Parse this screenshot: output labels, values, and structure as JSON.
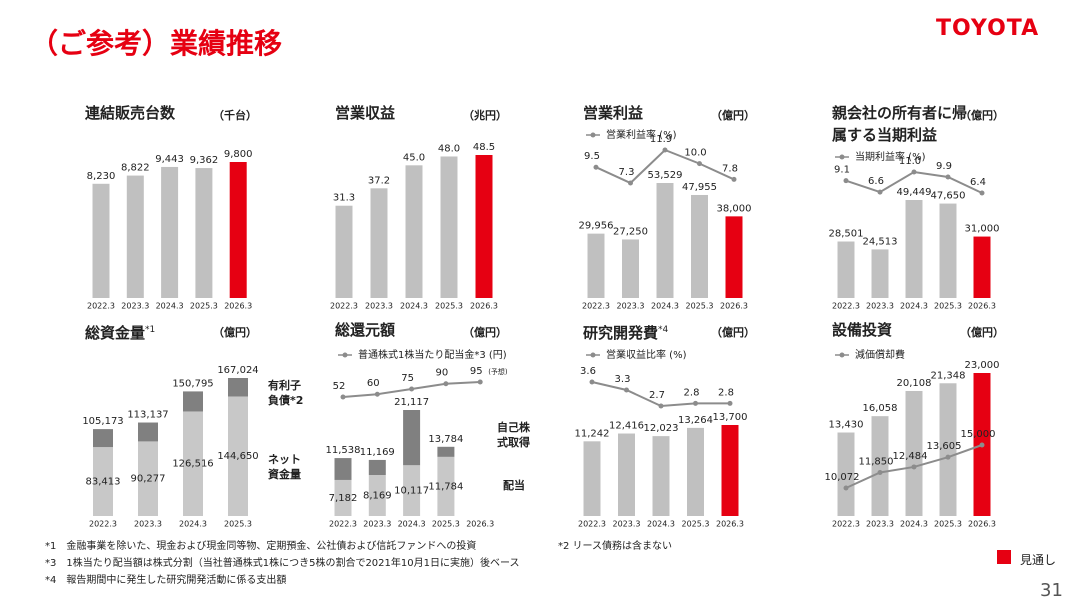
{
  "page": {
    "title": "（ご参考）業績推移",
    "logo": "TOYOTA",
    "page_number": "31",
    "forecast_legend": "見通し",
    "forecast_color": "#e60012",
    "footnotes": [
      "*1　金融事業を除いた、現金および現金同等物、定期預金、公社債および信託ファンドへの投資",
      "*2 リース債務は含まない",
      "*3　1株当たり配当額は株式分割（当社普通株式1株につき5株の割合で2021年10月1日に実施）後ベース",
      "*4　報告期間中に発生した研究開発活動に係る支出額"
    ]
  },
  "chart_data": [
    {
      "type": "bar",
      "title": "連結販売台数",
      "unit": "（千台）",
      "categories": [
        "2022.3",
        "2023.3",
        "2024.3",
        "2025.3",
        "2026.3"
      ],
      "values": [
        8230,
        8822,
        9443,
        9362,
        9800
      ],
      "value_labels": [
        "8,230",
        "8,822",
        "9,443",
        "9,362",
        "9,800"
      ],
      "colors": [
        "#c0c0c0",
        "#c0c0c0",
        "#c0c0c0",
        "#c0c0c0",
        "#e60012"
      ]
    },
    {
      "type": "bar",
      "title": "営業収益",
      "unit": "（兆円）",
      "categories": [
        "2022.3",
        "2023.3",
        "2024.3",
        "2025.3",
        "2026.3"
      ],
      "values": [
        31.3,
        37.2,
        45.0,
        48.0,
        48.5
      ],
      "value_labels": [
        "31.3",
        "37.2",
        "45.0",
        "48.0",
        "48.5"
      ],
      "colors": [
        "#c0c0c0",
        "#c0c0c0",
        "#c0c0c0",
        "#c0c0c0",
        "#e60012"
      ]
    },
    {
      "type": "bar",
      "title": "営業利益",
      "unit": "（億円）",
      "categories": [
        "2022.3",
        "2023.3",
        "2024.3",
        "2025.3",
        "2026.3"
      ],
      "values": [
        29956,
        27250,
        53529,
        47955,
        38000
      ],
      "value_labels": [
        "29,956",
        "27,250",
        "53,529",
        "47,955",
        "38,000"
      ],
      "colors": [
        "#c0c0c0",
        "#c0c0c0",
        "#c0c0c0",
        "#c0c0c0",
        "#e60012"
      ],
      "line": {
        "name": "営業利益率 (%)",
        "color": "#8c8c8c",
        "values": [
          9.5,
          7.3,
          11.9,
          10.0,
          7.8
        ],
        "value_labels": [
          "9.5",
          "7.3",
          "11.9",
          "10.0",
          "7.8"
        ]
      }
    },
    {
      "type": "bar",
      "title": "親会社の所有者に帰属する当期利益",
      "unit": "（億円）",
      "categories": [
        "2022.3",
        "2023.3",
        "2024.3",
        "2025.3",
        "2026.3"
      ],
      "values": [
        28501,
        24513,
        49449,
        47650,
        31000
      ],
      "value_labels": [
        "28,501",
        "24,513",
        "49,449",
        "47,650",
        "31,000"
      ],
      "colors": [
        "#c0c0c0",
        "#c0c0c0",
        "#c0c0c0",
        "#c0c0c0",
        "#e60012"
      ],
      "line": {
        "name": "当期利益率 (%)",
        "color": "#8c8c8c",
        "values": [
          9.1,
          6.6,
          11.0,
          9.9,
          6.4
        ],
        "value_labels": [
          "9.1",
          "6.6",
          "11.0",
          "9.9",
          "6.4"
        ]
      }
    },
    {
      "type": "stacked_bar",
      "title": "総資金量",
      "title_note": "*1",
      "unit": "（億円）",
      "categories": [
        "2022.3",
        "2023.3",
        "2024.3",
        "2025.3"
      ],
      "series": [
        {
          "name": "ネット資金量",
          "color": "#c8c8c8",
          "values": [
            83413,
            90277,
            126516,
            144650
          ],
          "value_labels": [
            "83,413",
            "90,277",
            "126,516",
            "144,650"
          ]
        },
        {
          "name": "有利子負債*2",
          "color": "#808080",
          "values": [
            21760,
            22860,
            24279,
            22374
          ]
        }
      ],
      "totals": [
        105173,
        113137,
        150795,
        167024
      ],
      "total_labels": [
        "105,173",
        "113,137",
        "150,795",
        "167,024"
      ]
    },
    {
      "type": "stacked_bar",
      "title": "総還元額",
      "unit": "（億円）",
      "categories": [
        "2022.3",
        "2023.3",
        "2024.3",
        "2025.3",
        "2026.3"
      ],
      "series": [
        {
          "name": "配当",
          "color": "#c8c8c8",
          "values": [
            7182,
            8169,
            10117,
            11784,
            null
          ],
          "value_labels": [
            "7,182",
            "8,169",
            "10,117",
            "11,784",
            null
          ]
        },
        {
          "name": "自己株式取得",
          "color": "#808080",
          "values": [
            4356,
            3000,
            11000,
            2000,
            null
          ]
        }
      ],
      "totals": [
        11538,
        11169,
        21117,
        13784,
        null
      ],
      "total_labels": [
        "11,538",
        "11,169",
        "21,117",
        "13,784",
        null
      ],
      "line": {
        "name": "普通株式1株当たり配当金*3 (円)",
        "color": "#8c8c8c",
        "values": [
          52,
          60,
          75,
          90,
          95
        ],
        "annotation": "(予想)"
      }
    },
    {
      "type": "bar",
      "title": "研究開発費",
      "title_note": "*4",
      "unit": "（億円）",
      "categories": [
        "2022.3",
        "2023.3",
        "2024.3",
        "2025.3",
        "2026.3"
      ],
      "values": [
        11242,
        12416,
        12023,
        13264,
        13700
      ],
      "value_labels": [
        "11,242",
        "12,416",
        "12,023",
        "13,264",
        "13,700"
      ],
      "colors": [
        "#c0c0c0",
        "#c0c0c0",
        "#c0c0c0",
        "#c0c0c0",
        "#e60012"
      ],
      "line": {
        "name": "営業収益比率 (%)",
        "color": "#8c8c8c",
        "values": [
          3.6,
          3.3,
          2.7,
          2.8,
          2.8
        ]
      }
    },
    {
      "type": "bar",
      "title": "設備投資",
      "unit": "（億円）",
      "categories": [
        "2022.3",
        "2023.3",
        "2024.3",
        "2025.3",
        "2026.3"
      ],
      "values": [
        13430,
        16058,
        20108,
        21348,
        23000
      ],
      "value_labels": [
        "13,430",
        "16,058",
        "20,108",
        "21,348",
        "23,000"
      ],
      "colors": [
        "#c0c0c0",
        "#c0c0c0",
        "#c0c0c0",
        "#c0c0c0",
        "#e60012"
      ],
      "line": {
        "name": "減価償却費",
        "color": "#8c8c8c",
        "values": [
          10072,
          11850,
          12484,
          13605,
          15000
        ],
        "value_labels": [
          "10,072",
          "11,850",
          "12,484",
          "13,605",
          "15,000"
        ]
      }
    }
  ]
}
